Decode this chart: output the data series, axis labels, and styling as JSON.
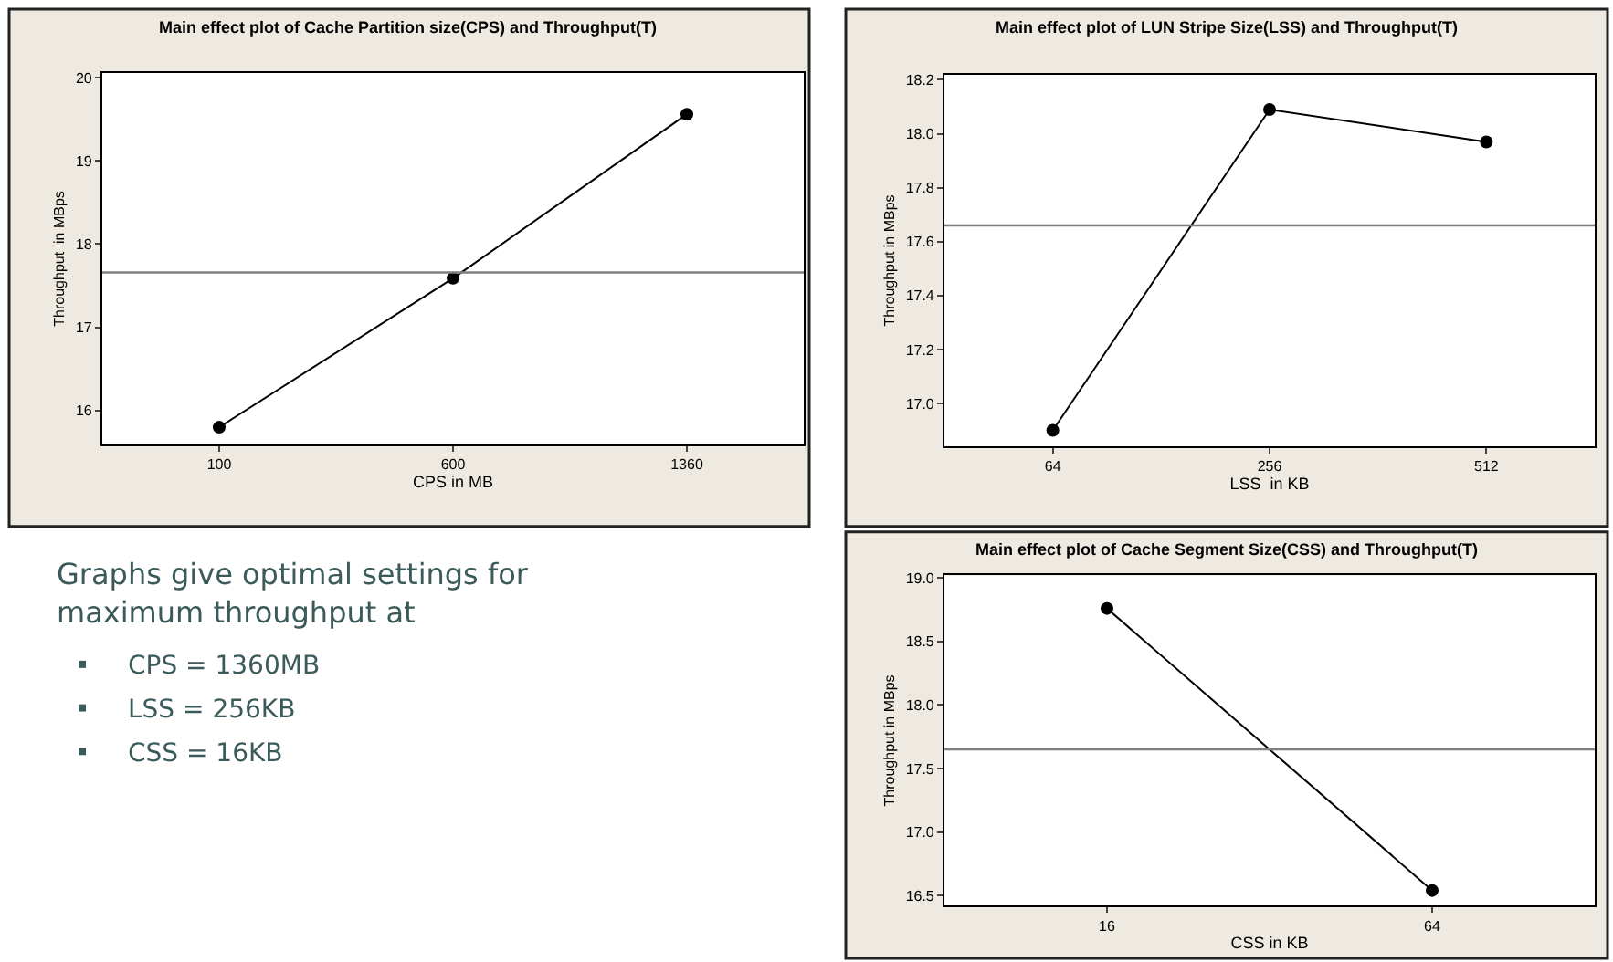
{
  "chart_data": [
    {
      "type": "line",
      "title": "Main effect plot of Cache Partition size(CPS) and Throughput(T)",
      "xlabel": "CPS in MB",
      "ylabel": "Throughput  in MBps",
      "categories": [
        "100",
        "600",
        "1360"
      ],
      "series": [
        {
          "color": "#000000",
          "values": [
            15.8,
            17.59,
            19.56
          ]
        }
      ],
      "ylim": [
        15.59,
        20.06
      ],
      "yticks": [
        16,
        17,
        18,
        19,
        20
      ],
      "ref_lines": [
        {
          "axis": "y",
          "value": 17.66,
          "color": "#808080"
        }
      ],
      "marker": "circle",
      "line_style": "solid",
      "grid": false
    },
    {
      "type": "line",
      "title": "Main effect plot of LUN Stripe Size(LSS) and Throughput(T)",
      "xlabel": "LSS  in KB",
      "ylabel": "Throughput in MBps",
      "categories": [
        "64",
        "256",
        "512"
      ],
      "series": [
        {
          "color": "#000000",
          "values": [
            16.9,
            18.09,
            17.97
          ]
        }
      ],
      "ylim": [
        16.84,
        18.22
      ],
      "yticks": [
        {
          "value": 17.0,
          "label": "17.0"
        },
        {
          "value": 17.2,
          "label": "17.2"
        },
        {
          "value": 17.4,
          "label": "17.4"
        },
        {
          "value": 17.6,
          "label": "17.6"
        },
        {
          "value": 17.8,
          "label": "17.8"
        },
        {
          "value": 18.0,
          "label": "18.0"
        },
        {
          "value": 18.2,
          "label": "18.2"
        }
      ],
      "ref_lines": [
        {
          "axis": "y",
          "value": 17.66,
          "color": "#808080"
        }
      ],
      "marker": "circle",
      "line_style": "solid",
      "grid": false
    },
    {
      "type": "other",
      "annotations": [
        "Graphs give optimal settings for maximum throughput at",
        "CPS = 1360MB",
        "LSS = 256KB",
        "CSS = 16KB"
      ]
    },
    {
      "type": "line",
      "title": "Main effect plot of Cache Segment Size(CSS) and Throughput(T)",
      "xlabel": "CSS in KB",
      "ylabel": "Throughput in MBps",
      "categories": [
        "16",
        "64"
      ],
      "series": [
        {
          "color": "#000000",
          "values": [
            18.76,
            16.54
          ]
        }
      ],
      "ylim": [
        16.42,
        19.02
      ],
      "yticks": [
        {
          "value": 16.5,
          "label": "16.5"
        },
        {
          "value": 17.0,
          "label": "17.0"
        },
        {
          "value": 17.5,
          "label": "17.5"
        },
        {
          "value": 18.0,
          "label": "18.0"
        },
        {
          "value": 18.5,
          "label": "18.5"
        },
        {
          "value": 19.0,
          "label": "19.0"
        }
      ],
      "ref_lines": [
        {
          "axis": "y",
          "value": 17.65,
          "color": "#808080"
        }
      ],
      "marker": "circle",
      "line_style": "solid",
      "grid": false
    }
  ]
}
